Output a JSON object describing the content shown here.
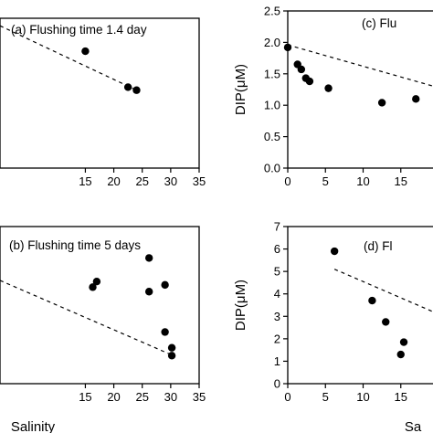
{
  "chart_data": [
    {
      "type": "scatter",
      "title": "(a) Flushing time 1.4 day",
      "xlabel": "",
      "ylabel": "",
      "xlim": [
        0,
        35
      ],
      "xticks": [
        15,
        20,
        25,
        30,
        35
      ],
      "points": [
        [
          15.0,
          0.78
        ],
        [
          22.5,
          0.54
        ],
        [
          24.0,
          0.52
        ]
      ],
      "trend": [
        [
          0,
          0.95
        ],
        [
          24,
          0.52
        ]
      ]
    },
    {
      "type": "scatter",
      "title": "(c) Flu",
      "xlabel": "",
      "ylabel": "DIP(μM)",
      "xlim": [
        0,
        20
      ],
      "ylim": [
        0,
        2.5
      ],
      "xticks": [
        0,
        5,
        10,
        15
      ],
      "yticks": [
        "0.0",
        "0.5",
        "1.0",
        "1.5",
        "2.0",
        "2.5"
      ],
      "points": [
        [
          0,
          1.92
        ],
        [
          1.3,
          1.65
        ],
        [
          1.8,
          1.57
        ],
        [
          2.4,
          1.43
        ],
        [
          2.9,
          1.38
        ],
        [
          5.4,
          1.27
        ],
        [
          12.5,
          1.04
        ],
        [
          17.0,
          1.1
        ]
      ],
      "trend": [
        [
          0,
          1.96
        ],
        [
          20,
          1.28
        ]
      ]
    },
    {
      "type": "scatter",
      "title": "(b) Flushing time 5 days",
      "xlabel": "Salinity",
      "ylabel": "",
      "xlim": [
        0,
        35
      ],
      "xticks": [
        15,
        20,
        25,
        30,
        35
      ],
      "points": [
        [
          16.3,
          4.3
        ],
        [
          17.0,
          4.55
        ],
        [
          26.2,
          5.6
        ],
        [
          26.2,
          4.1
        ],
        [
          29.0,
          4.4
        ],
        [
          29.0,
          2.3
        ],
        [
          30.2,
          1.6
        ],
        [
          30.2,
          1.25
        ]
      ],
      "trend": [
        [
          0,
          4.6
        ],
        [
          30,
          1.3
        ]
      ]
    },
    {
      "type": "scatter",
      "title": "(d) Fl",
      "xlabel": "Sa",
      "ylabel": "DIP(μM)",
      "xlim": [
        0,
        20
      ],
      "ylim": [
        0,
        7
      ],
      "xticks": [
        0,
        5,
        10,
        15
      ],
      "yticks": [
        "0",
        "1",
        "2",
        "3",
        "4",
        "5",
        "6",
        "7"
      ],
      "points": [
        [
          6.2,
          5.9
        ],
        [
          11.2,
          3.7
        ],
        [
          13.0,
          2.75
        ],
        [
          15.4,
          1.85
        ],
        [
          15.0,
          1.3
        ]
      ],
      "trend": [
        [
          6.2,
          5.1
        ],
        [
          20,
          3.1
        ]
      ]
    }
  ]
}
